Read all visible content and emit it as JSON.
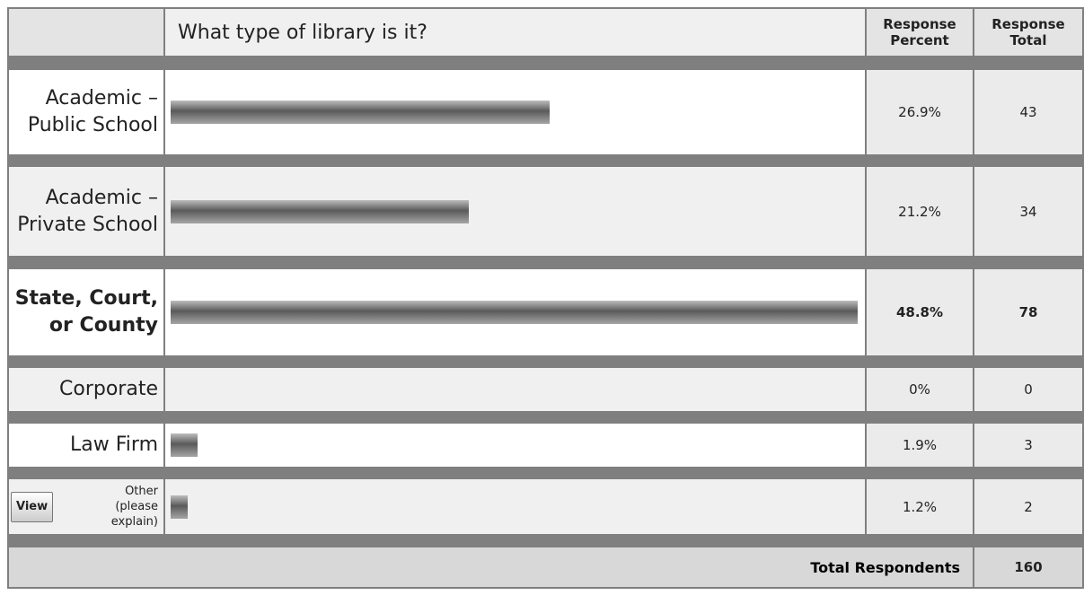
{
  "header": {
    "question": "What type of library is it?",
    "percent_heading": "Response Percent",
    "total_heading": "Response Total"
  },
  "rows": [
    {
      "label": "Academic – Public School",
      "percent": 26.9,
      "percent_label": "26.9%",
      "total": 43
    },
    {
      "label": "Academic – Private School",
      "percent": 21.2,
      "percent_label": "21.2%",
      "total": 34
    },
    {
      "label": "State, Court, or County",
      "percent": 48.8,
      "percent_label": "48.8%",
      "total": 78,
      "bold": true
    },
    {
      "label": "Corporate",
      "percent": 0,
      "percent_label": "0%",
      "total": 0
    },
    {
      "label": "Law Firm",
      "percent": 1.9,
      "percent_label": "1.9%",
      "total": 3
    },
    {
      "label": "Other (please explain)",
      "percent": 1.2,
      "percent_label": "1.2%",
      "total": 2,
      "small": true,
      "button": "View"
    }
  ],
  "footer": {
    "label": "Total Respondents",
    "total": 160
  }
}
